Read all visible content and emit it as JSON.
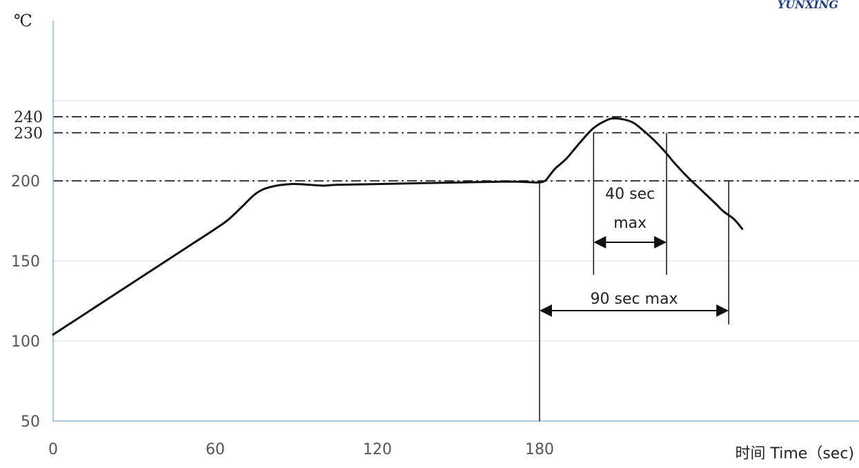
{
  "chart_data": {
    "type": "line",
    "y_unit": "℃",
    "xlabel": "时间 Time（sec)",
    "xlim": [
      0,
      255
    ],
    "ylim": [
      50,
      265
    ],
    "x_ticks": [
      0,
      60,
      120,
      180
    ],
    "y_ticks": [
      50,
      100,
      150,
      200
    ],
    "y_ticks_extra": [
      230,
      240
    ],
    "grid": true,
    "series": [
      {
        "x": [
          0,
          10,
          20,
          30,
          40,
          50,
          60,
          65,
          70,
          75,
          80,
          88,
          95,
          100,
          105,
          120,
          150,
          170,
          179,
          182,
          184,
          186,
          190,
          195,
          200,
          205,
          208,
          212,
          215,
          218,
          222,
          226,
          230,
          235,
          240,
          245,
          248,
          252,
          255
        ],
        "y": [
          104,
          115,
          126,
          137,
          148,
          159,
          170,
          176,
          184,
          192,
          196,
          198,
          197.5,
          197,
          197.5,
          198,
          199,
          199.5,
          199,
          200,
          204,
          208,
          214,
          224,
          233,
          238,
          239,
          238,
          236,
          232,
          226,
          219,
          211,
          202,
          194,
          186,
          181,
          176,
          170
        ]
      }
    ],
    "reference_lines": [
      {
        "y": 240,
        "style": "dash-dot"
      },
      {
        "y": 230,
        "style": "dash-dot"
      },
      {
        "y": 200,
        "style": "dash-dot"
      }
    ],
    "annotations": [
      {
        "text_lines": [
          "40 sec",
          "max"
        ],
        "x_from": 200,
        "x_to": 227
      },
      {
        "text_lines": [
          "90 sec max"
        ],
        "x_from": 180,
        "x_to": 250
      }
    ]
  },
  "logo": {
    "text": "YUNXING"
  }
}
